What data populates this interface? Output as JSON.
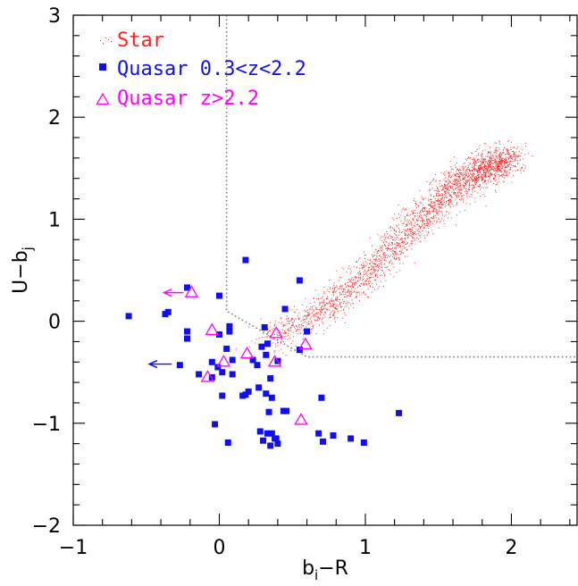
{
  "chart_data": {
    "type": "scatter",
    "xlabel": "b_i−R",
    "ylabel": "U−b_j",
    "xlim": [
      -1,
      2.45
    ],
    "ylim": [
      -2,
      3
    ],
    "x_ticks": [
      -1,
      0,
      1,
      2
    ],
    "y_ticks": [
      -2,
      -1,
      0,
      1,
      2,
      3
    ],
    "x_tick_labels": [
      "−1",
      "0",
      "1",
      "2"
    ],
    "y_tick_labels": [
      "−2",
      "−1",
      "0",
      "1",
      "2",
      "3"
    ],
    "grid": false,
    "legend_position": "top-left",
    "colors": {
      "star": "#ff2020",
      "quasar_low": "#1010ee",
      "quasar_high": "#ff00ff",
      "cut": "#777777"
    },
    "selection_cut": [
      [
        0.05,
        3
      ],
      [
        0.05,
        0.1
      ],
      [
        0.6,
        -0.35
      ],
      [
        2.45,
        -0.35
      ]
    ],
    "series": [
      {
        "name": "Star",
        "marker": "dot",
        "color": "#ff2020",
        "locus": [
          [
            0.3,
            -0.2
          ],
          [
            0.7,
            0.1
          ],
          [
            1.0,
            0.45
          ],
          [
            1.3,
            0.9
          ],
          [
            1.6,
            1.3
          ],
          [
            1.8,
            1.5
          ],
          [
            2.0,
            1.6
          ]
        ],
        "n_points": 2600
      },
      {
        "name": "Quasar 0.3<z<2.2",
        "marker": "filled-square",
        "color": "#1010ee",
        "points": [
          [
            -0.62,
            0.05
          ],
          [
            -0.37,
            0.07
          ],
          [
            -0.35,
            0.09
          ],
          [
            -0.22,
            0.33
          ],
          [
            -0.22,
            -0.1
          ],
          [
            -0.22,
            -0.17
          ],
          [
            -0.27,
            -0.43
          ],
          [
            -0.05,
            -0.4
          ],
          [
            -0.01,
            -0.45
          ],
          [
            -0.14,
            -0.52
          ],
          [
            -0.05,
            -0.55
          ],
          [
            0.02,
            -0.5
          ],
          [
            0.0,
            -0.13
          ],
          [
            0.0,
            0.25
          ],
          [
            0.05,
            -0.27
          ],
          [
            0.07,
            -0.05
          ],
          [
            0.07,
            -0.1
          ],
          [
            0.09,
            -0.38
          ],
          [
            0.09,
            -0.52
          ],
          [
            0.02,
            -0.73
          ],
          [
            0.16,
            -0.73
          ],
          [
            0.18,
            -0.72
          ],
          [
            0.2,
            -0.69
          ],
          [
            0.27,
            -0.65
          ],
          [
            0.23,
            -0.38
          ],
          [
            0.18,
            0.6
          ],
          [
            0.26,
            -0.43
          ],
          [
            0.29,
            -0.25
          ],
          [
            0.31,
            -0.06
          ],
          [
            0.33,
            -0.22
          ],
          [
            0.32,
            -0.33
          ],
          [
            0.35,
            -0.56
          ],
          [
            0.32,
            -0.71
          ],
          [
            0.36,
            -0.75
          ],
          [
            0.34,
            -0.89
          ],
          [
            0.28,
            -1.08
          ],
          [
            0.33,
            -1.1
          ],
          [
            0.36,
            -1.1
          ],
          [
            0.38,
            -1.15
          ],
          [
            0.44,
            -0.88
          ],
          [
            0.45,
            0.12
          ],
          [
            0.55,
            0.4
          ],
          [
            0.55,
            -0.28
          ],
          [
            0.6,
            -0.1
          ],
          [
            0.4,
            -0.39
          ],
          [
            0.39,
            -1.15
          ],
          [
            0.35,
            -1.22
          ],
          [
            0.4,
            -1.2
          ],
          [
            0.3,
            -1.17
          ],
          [
            0.06,
            -1.19
          ],
          [
            -0.03,
            -1.01
          ],
          [
            0.46,
            -0.88
          ],
          [
            0.68,
            -1.1
          ],
          [
            0.7,
            -0.75
          ],
          [
            0.71,
            -1.18
          ],
          [
            0.78,
            -1.12
          ],
          [
            0.9,
            -1.15
          ],
          [
            0.99,
            -1.19
          ],
          [
            1.23,
            -0.9
          ]
        ]
      },
      {
        "name": "Quasar z>2.2",
        "marker": "open-triangle",
        "color": "#ff00ff",
        "points": [
          [
            -0.19,
            0.28
          ],
          [
            -0.05,
            -0.09
          ],
          [
            -0.08,
            -0.55
          ],
          [
            0.03,
            -0.4
          ],
          [
            0.19,
            -0.32
          ],
          [
            0.38,
            -0.4
          ],
          [
            0.39,
            -0.12
          ],
          [
            0.59,
            -0.23
          ],
          [
            0.56,
            -0.97
          ]
        ]
      }
    ],
    "annotations": [
      {
        "type": "arrow-left",
        "color": "#ff00ff",
        "from": [
          -0.19,
          0.28
        ],
        "to": [
          -0.38,
          0.28
        ]
      },
      {
        "type": "arrow-left",
        "color": "#1010ee",
        "from": [
          -0.27,
          -0.42
        ],
        "to": [
          -0.48,
          -0.42
        ]
      }
    ]
  }
}
